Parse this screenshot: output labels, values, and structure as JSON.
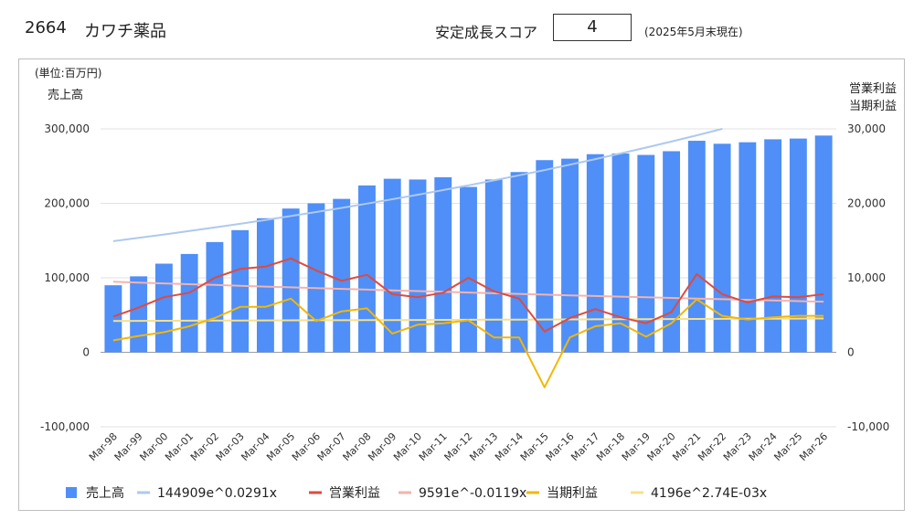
{
  "header": {
    "code": "2664",
    "name": "カワチ薬品",
    "score_label": "安定成長スコア",
    "score_value": "4",
    "as_of": "(2025年5月末現在)"
  },
  "chart_data": {
    "type": "bar",
    "unit_label": "(単位:百万円)",
    "left_axis_title": "売上高",
    "right_axis_title": [
      "営業利益",
      "当期利益"
    ],
    "categories": [
      "Mar-98",
      "Mar-99",
      "Mar-00",
      "Mar-01",
      "Mar-02",
      "Mar-03",
      "Mar-04",
      "Mar-05",
      "Mar-06",
      "Mar-07",
      "Mar-08",
      "Mar-09",
      "Mar-10",
      "Mar-11",
      "Mar-12",
      "Mar-13",
      "Mar-14",
      "Mar-15",
      "Mar-16",
      "Mar-17",
      "Mar-18",
      "Mar-19",
      "Mar-20",
      "Mar-21",
      "Mar-22",
      "Mar-23",
      "Mar-24",
      "Mar-25",
      "Mar-26"
    ],
    "left_axis": {
      "min": -100000,
      "max": 300000,
      "ticks": [
        "-100,000",
        "0",
        "100,000",
        "200,000",
        "300,000"
      ]
    },
    "right_axis": {
      "min": -10000,
      "max": 30000,
      "ticks": [
        "-10,000",
        "0",
        "10,000",
        "20,000",
        "30,000"
      ]
    },
    "gridlines": true,
    "legend_position": "bottom",
    "series": [
      {
        "name": "売上高",
        "type": "bar",
        "axis": "left",
        "color": "#4f8ff7",
        "values": [
          90000,
          102000,
          119000,
          132000,
          148000,
          164000,
          180000,
          193000,
          200000,
          206000,
          224000,
          233000,
          232000,
          235000,
          222000,
          232000,
          242000,
          258000,
          260000,
          266000,
          267000,
          265000,
          270000,
          284000,
          280000,
          282000,
          286000,
          287000,
          291000
        ]
      },
      {
        "name": "144909e^0.0291x",
        "type": "trend",
        "axis": "left",
        "color": "#aec9ee",
        "formula": {
          "a": 144909,
          "b": 0.0291
        }
      },
      {
        "name": "営業利益",
        "type": "line",
        "axis": "right",
        "color": "#df4a3e",
        "values": [
          4800,
          6000,
          7400,
          8000,
          10000,
          11200,
          11500,
          12600,
          11000,
          9600,
          10400,
          7800,
          7400,
          8000,
          10000,
          8200,
          7200,
          2800,
          4600,
          5800,
          4700,
          3900,
          5400,
          10500,
          7800,
          6700,
          7500,
          7400,
          7800
        ]
      },
      {
        "name": "9591e^-0.0119x",
        "type": "trend",
        "axis": "right",
        "color": "#f3b3ad",
        "formula": {
          "a": 9591,
          "b": -0.0119
        }
      },
      {
        "name": "当期利益",
        "type": "line",
        "axis": "right",
        "color": "#f2b705",
        "values": [
          1600,
          2200,
          2700,
          3500,
          4600,
          6100,
          6100,
          7200,
          4200,
          5500,
          5900,
          2500,
          3700,
          3900,
          4300,
          2000,
          2000,
          -4700,
          2000,
          3500,
          3900,
          2100,
          3900,
          7100,
          4900,
          4400,
          4700,
          4900,
          4900
        ]
      },
      {
        "name": "4196e^2.74E-03x",
        "type": "trend",
        "axis": "right",
        "color": "#f7e08c",
        "formula": {
          "a": 4196,
          "b": 0.00274
        }
      }
    ]
  }
}
